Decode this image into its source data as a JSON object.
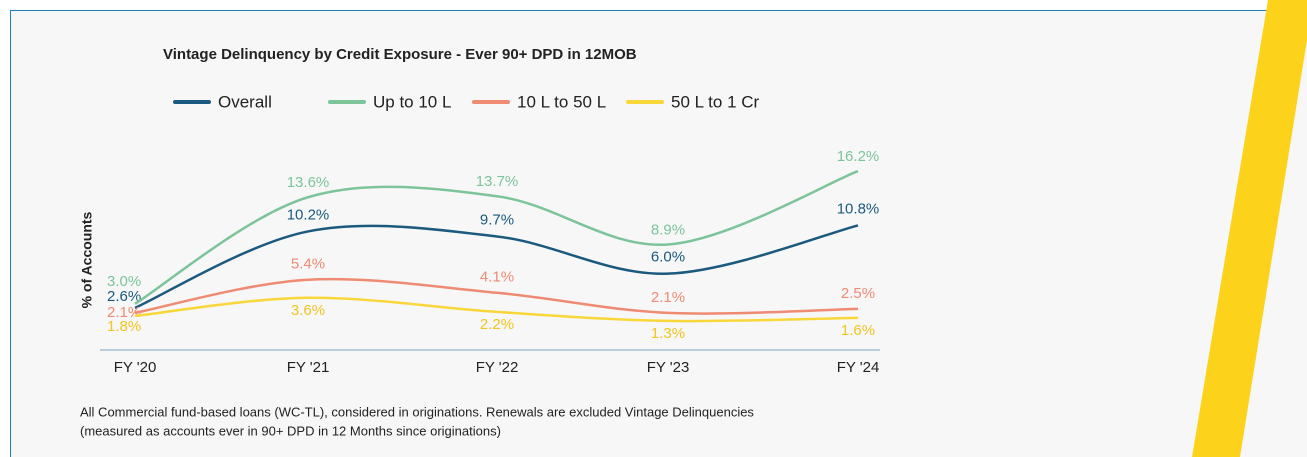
{
  "chart_data": {
    "type": "line",
    "title": "Vintage Delinquency by Credit Exposure - Ever 90+ DPD in 12MOB",
    "y_label": "% of Accounts",
    "categories": [
      "FY '20",
      "FY '21",
      "FY '22",
      "FY '23",
      "FY '24"
    ],
    "series": [
      {
        "name": "Overall",
        "color": "#1b5a7e",
        "values": [
          2.6,
          10.2,
          9.7,
          6.0,
          10.8
        ],
        "value_labels": [
          "2.6%",
          "10.2%",
          "9.7%",
          "6.0%",
          "10.8%"
        ]
      },
      {
        "name": "Up to 10 L",
        "color": "#7cc49a",
        "values": [
          3.0,
          13.6,
          13.7,
          8.9,
          16.2
        ],
        "value_labels": [
          "3.0%",
          "13.6%",
          "13.7%",
          "8.9%",
          "16.2%"
        ]
      },
      {
        "name": "10 L to 50 L",
        "color": "#ef8a73",
        "values": [
          2.1,
          5.4,
          4.1,
          2.1,
          2.5
        ],
        "value_labels": [
          "2.1%",
          "5.4%",
          "4.1%",
          "2.1%",
          "2.5%"
        ]
      },
      {
        "name": "50 L to 1 Cr",
        "color": "#f9d73a",
        "values": [
          1.8,
          3.6,
          2.2,
          1.3,
          1.6
        ],
        "value_labels": [
          "1.8%",
          "3.6%",
          "2.2%",
          "1.3%",
          "1.6%"
        ]
      }
    ],
    "ylim": [
      0,
      18
    ],
    "footnote": [
      "All Commercial fund-based loans (WC-TL), considered in originations. Renewals are excluded Vintage Delinquencies",
      "(measured as accounts ever in 90+ DPD in 12 Months since originations)"
    ]
  }
}
